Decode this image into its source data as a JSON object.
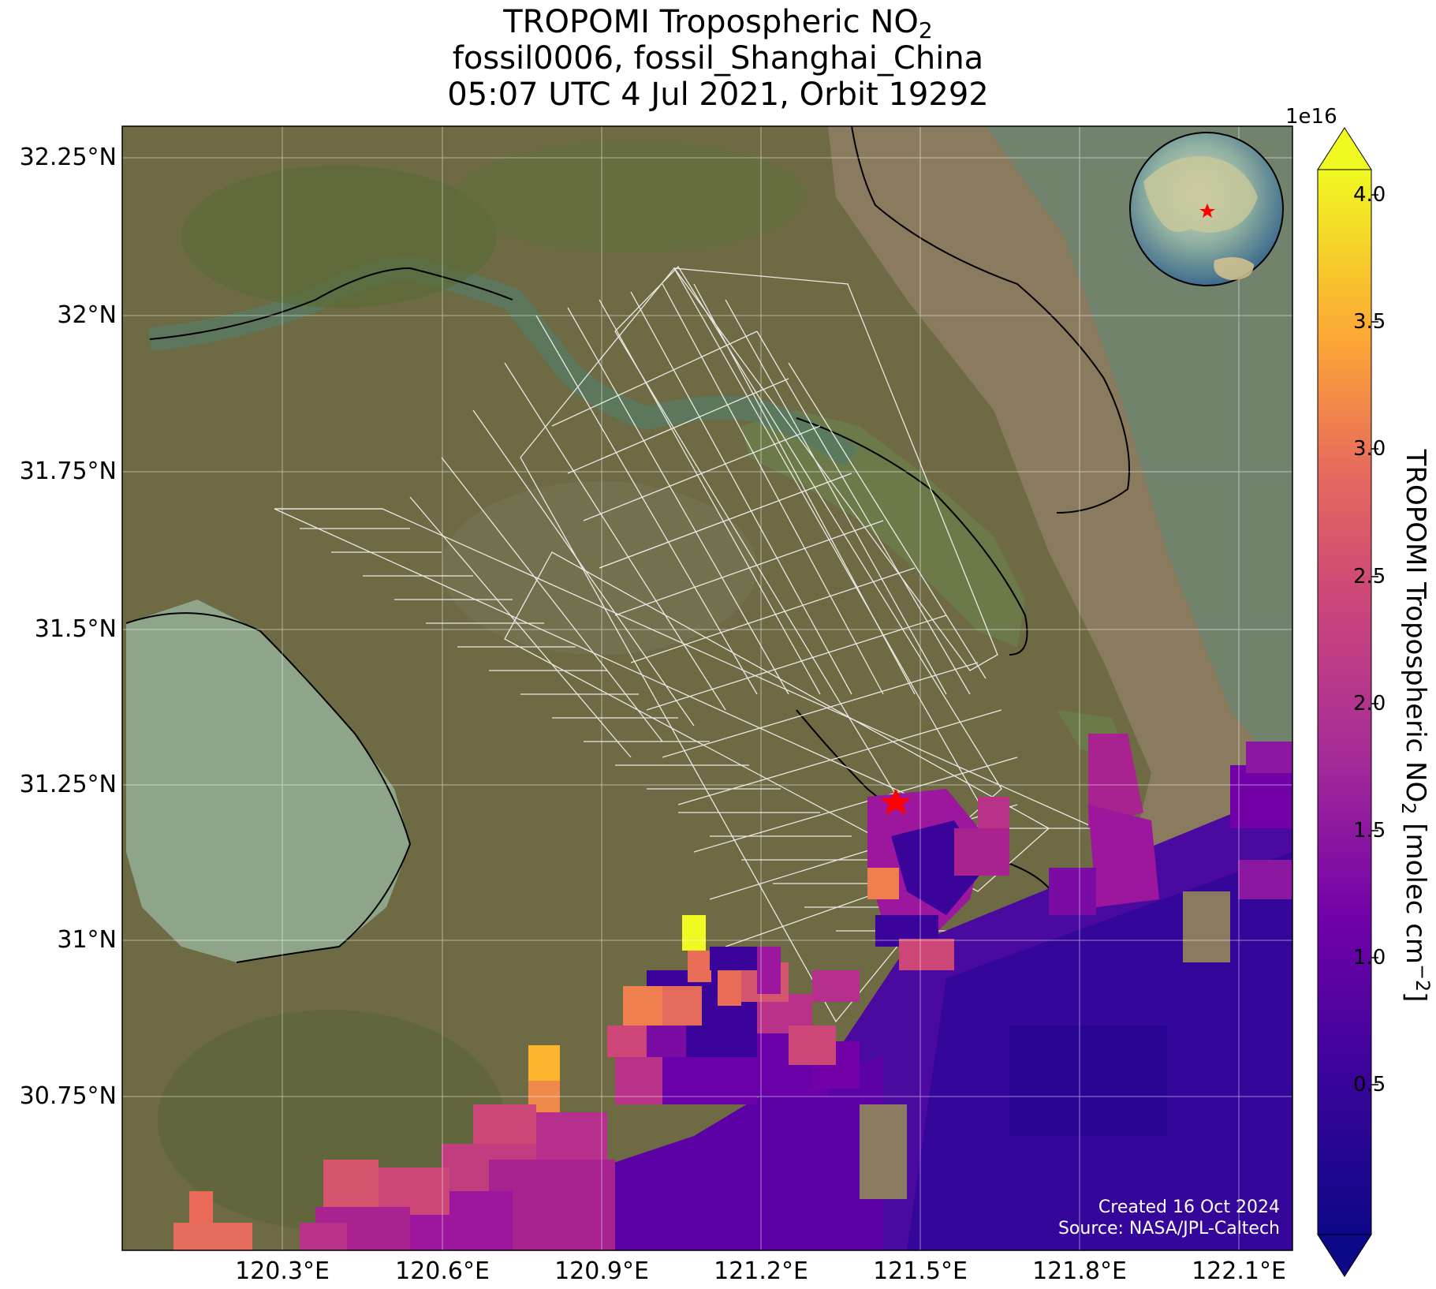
{
  "title": {
    "line1_prefix": "TROPOMI Tropospheric NO",
    "line1_sub": "2",
    "line2": "fossil0006, fossil_Shanghai_China",
    "line3": "05:07 UTC 4 Jul 2021, Orbit 19292"
  },
  "map": {
    "lat_labels": [
      "32.25°N",
      "32°N",
      "31.75°N",
      "31.5°N",
      "31.25°N",
      "31°N",
      "30.75°N"
    ],
    "lon_labels": [
      "120.3°E",
      "120.6°E",
      "120.9°E",
      "121.2°E",
      "121.5°E",
      "121.8°E",
      "122.1°E"
    ],
    "site_marker": "red-star",
    "credit_line1": "Created 16 Oct 2024",
    "credit_line2": "Source: NASA/JPL-Caltech"
  },
  "colorbar": {
    "exponent": "1e16",
    "tick_labels": [
      "4.0",
      "3.5",
      "3.0",
      "2.5",
      "2.0",
      "1.5",
      "1.0",
      "0.5"
    ],
    "title_prefix": "TROPOMI Tropospheric NO",
    "title_sub": "2",
    "title_mid": " [molec cm",
    "title_sup": "−2",
    "title_suffix": "]",
    "colormap": "plasma",
    "colors": [
      "#0d0887",
      "#5c01a6",
      "#9c179e",
      "#cc4778",
      "#ed7953",
      "#fdb42f",
      "#f0f921"
    ]
  }
}
